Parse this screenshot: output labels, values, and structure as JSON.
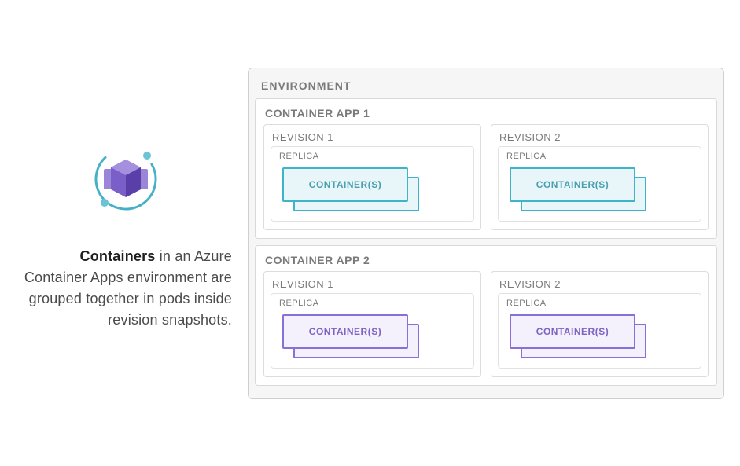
{
  "description": {
    "bold": "Containers",
    "rest": " in an Azure Container Apps environment are grouped together in pods inside revision snapshots."
  },
  "icon": {
    "ring_color": "#45b0c6",
    "dot_color": "#6bc4d6",
    "cube_front": "#7b5fc9",
    "cube_side": "#5b3fa8",
    "cube_top": "#a590e0",
    "side_panel": "#9b85d8"
  },
  "diagram": {
    "env_label": "ENVIRONMENT",
    "env_border": "#cfcfcf",
    "env_bg": "#f6f6f6",
    "app_bg": "#ffffff",
    "app_border": "#d9d9d9",
    "rev_border": "#dcdcdc",
    "rep_border": "#e2e2e2",
    "label_color": "#7a7a7a",
    "apps": [
      {
        "label": "CONTAINER APP 1",
        "container_border": "#3fb3c7",
        "container_fill": "#e8f6f9",
        "container_text_color": "#4a9fb0",
        "revisions": [
          {
            "label": "REVISION 1",
            "replica_label": "REPLICA",
            "container_label": "CONTAINER(S)"
          },
          {
            "label": "REVISION 2",
            "replica_label": "REPLICA",
            "container_label": "CONTAINER(S)"
          }
        ]
      },
      {
        "label": "CONTAINER APP 2",
        "container_border": "#8b6fd8",
        "container_fill": "#f4f0fc",
        "container_text_color": "#7d63c4",
        "revisions": [
          {
            "label": "REVISION 1",
            "replica_label": "REPLICA",
            "container_label": "CONTAINER(S)"
          },
          {
            "label": "REVISION 2",
            "replica_label": "REPLICA",
            "container_label": "CONTAINER(S)"
          }
        ]
      }
    ]
  }
}
